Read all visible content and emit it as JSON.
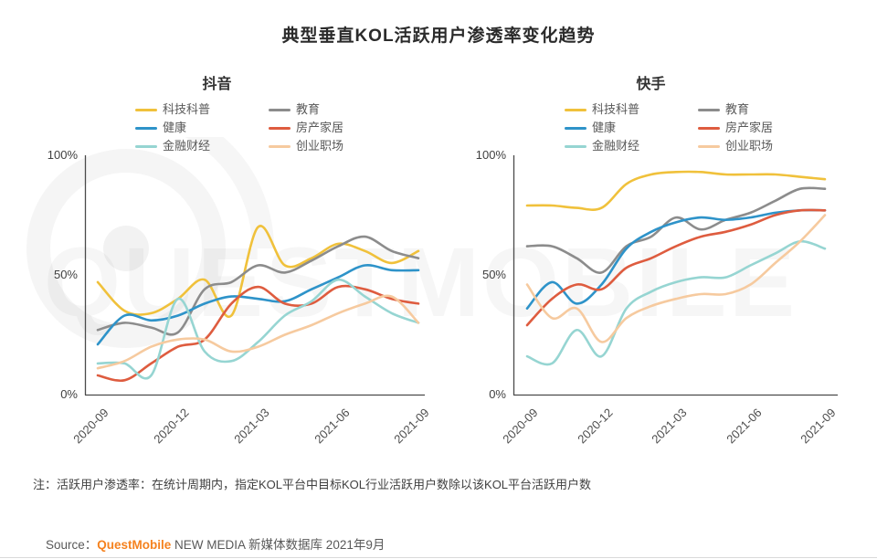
{
  "title": "典型垂直KOL活跃用户渗透率变化趋势",
  "watermark": {
    "text": "QUESTMOBILE"
  },
  "legend": [
    {
      "label": "科技科普",
      "color": "#F0C13B"
    },
    {
      "label": "教育",
      "color": "#8C8C8C"
    },
    {
      "label": "健康",
      "color": "#2E93C9"
    },
    {
      "label": "房产家居",
      "color": "#DE5C3F"
    },
    {
      "label": "金融财经",
      "color": "#96D5D2"
    },
    {
      "label": "创业职场",
      "color": "#F6CA9F"
    }
  ],
  "chart_data": [
    {
      "type": "line",
      "title": "抖音",
      "x": [
        "2020-09",
        "2020-10",
        "2020-11",
        "2020-12",
        "2021-01",
        "2021-02",
        "2021-03",
        "2021-04",
        "2021-05",
        "2021-06",
        "2021-07",
        "2021-08",
        "2021-09"
      ],
      "tick_labels": [
        "2020-09",
        "2020-12",
        "2021-03",
        "2021-06",
        "2021-09"
      ],
      "yticks": [
        "100%",
        "50%",
        "0%"
      ],
      "ylim": [
        0,
        100
      ],
      "grid": false,
      "legend_position": "top",
      "series": [
        {
          "name": "科技科普",
          "color": "#F0C13B",
          "values": [
            47,
            35,
            34,
            40,
            48,
            33,
            70,
            54,
            57,
            63,
            60,
            55,
            60
          ]
        },
        {
          "name": "教育",
          "color": "#8C8C8C",
          "values": [
            27,
            30,
            28,
            26,
            44,
            47,
            54,
            51,
            56,
            62,
            66,
            60,
            57
          ]
        },
        {
          "name": "健康",
          "color": "#2E93C9",
          "values": [
            21,
            33,
            31,
            33,
            38,
            41,
            40,
            39,
            44,
            49,
            54,
            52,
            52
          ]
        },
        {
          "name": "房产家居",
          "color": "#DE5C3F",
          "values": [
            8,
            6,
            13,
            20,
            23,
            38,
            45,
            38,
            38,
            45,
            44,
            40,
            38
          ]
        },
        {
          "name": "金融财经",
          "color": "#96D5D2",
          "values": [
            13,
            13,
            8,
            40,
            18,
            14,
            22,
            33,
            39,
            48,
            41,
            34,
            30
          ]
        },
        {
          "name": "创业职场",
          "color": "#F6CA9F",
          "values": [
            11,
            14,
            20,
            23,
            23,
            18,
            20,
            25,
            29,
            34,
            38,
            41,
            30
          ]
        }
      ]
    },
    {
      "type": "line",
      "title": "快手",
      "x": [
        "2020-09",
        "2020-10",
        "2020-11",
        "2020-12",
        "2021-01",
        "2021-02",
        "2021-03",
        "2021-04",
        "2021-05",
        "2021-06",
        "2021-07",
        "2021-08",
        "2021-09"
      ],
      "tick_labels": [
        "2020-09",
        "2020-12",
        "2021-03",
        "2021-06",
        "2021-09"
      ],
      "yticks": [
        "100%",
        "50%",
        "0%"
      ],
      "ylim": [
        0,
        100
      ],
      "grid": false,
      "legend_position": "top",
      "series": [
        {
          "name": "科技科普",
          "color": "#F0C13B",
          "values": [
            79,
            79,
            78,
            78,
            88,
            92,
            93,
            93,
            92,
            92,
            92,
            91,
            90
          ]
        },
        {
          "name": "教育",
          "color": "#8C8C8C",
          "values": [
            62,
            62,
            57,
            51,
            62,
            66,
            74,
            69,
            73,
            76,
            81,
            86,
            86
          ]
        },
        {
          "name": "健康",
          "color": "#2E93C9",
          "values": [
            36,
            47,
            38,
            46,
            61,
            68,
            72,
            74,
            73,
            74,
            76,
            77,
            77
          ]
        },
        {
          "name": "房产家居",
          "color": "#DE5C3F",
          "values": [
            29,
            40,
            46,
            44,
            53,
            57,
            62,
            66,
            68,
            71,
            75,
            77,
            77
          ]
        },
        {
          "name": "金融财经",
          "color": "#96D5D2",
          "values": [
            16,
            13,
            27,
            16,
            36,
            43,
            47,
            49,
            49,
            54,
            59,
            64,
            61
          ]
        },
        {
          "name": "创业职场",
          "color": "#F6CA9F",
          "values": [
            46,
            32,
            36,
            22,
            32,
            37,
            40,
            42,
            42,
            46,
            55,
            64,
            75
          ]
        }
      ]
    }
  ],
  "note": "注：活跃用户渗透率：在统计周期内，指定KOL平台中目标KOL行业活跃用户数除以该KOL平台活跃用户数",
  "source": {
    "prefix": "Source：",
    "brand": "QuestMobile",
    "suffix": " NEW MEDIA 新媒体数据库 2021年9月"
  },
  "colors": {
    "brand_orange": "#F5821F",
    "axis": "#4a4a4a",
    "text_dark": "#2b2b2b",
    "text_gray": "#595959"
  }
}
